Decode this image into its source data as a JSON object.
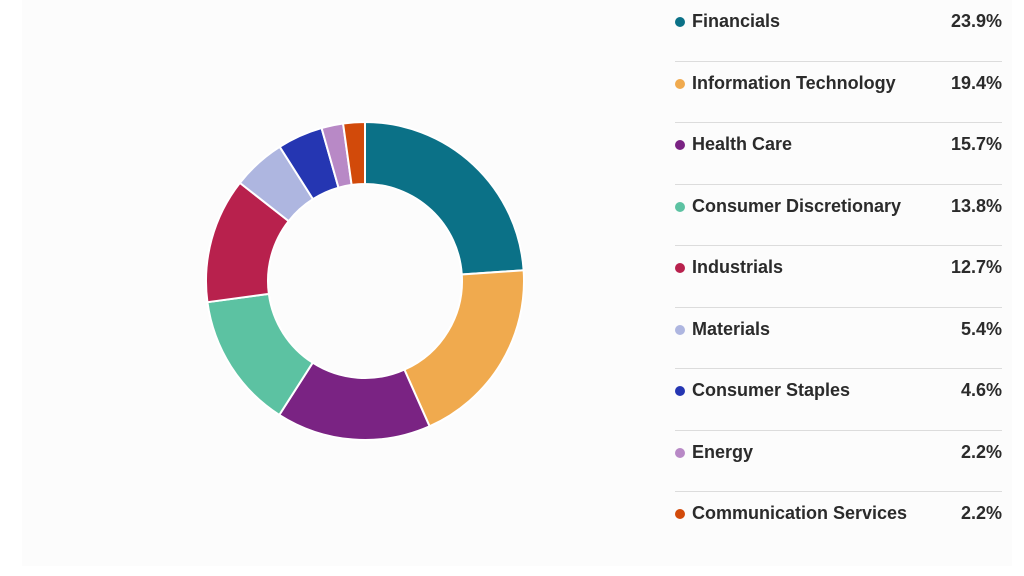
{
  "chart_data": {
    "type": "pie",
    "style": "donut",
    "title": "",
    "categories": [
      "Financials",
      "Information Technology",
      "Health Care",
      "Consumer Discretionary",
      "Industrials",
      "Materials",
      "Consumer Staples",
      "Energy",
      "Communication Services"
    ],
    "values": [
      23.9,
      19.4,
      15.7,
      13.8,
      12.7,
      5.4,
      4.6,
      2.2,
      2.2
    ],
    "value_labels": [
      "23.9%",
      "19.4%",
      "15.7%",
      "13.8%",
      "12.7%",
      "5.4%",
      "4.6%",
      "2.2%",
      "2.2%"
    ],
    "colors": [
      "#0b7187",
      "#f0aa4e",
      "#7a2383",
      "#5cc2a2",
      "#b8214d",
      "#aeb6e0",
      "#2536b2",
      "#b889c6",
      "#d24a0a"
    ],
    "unit": "%",
    "start_angle_deg": 0,
    "direction": "clockwise",
    "legend_placement": "right"
  }
}
